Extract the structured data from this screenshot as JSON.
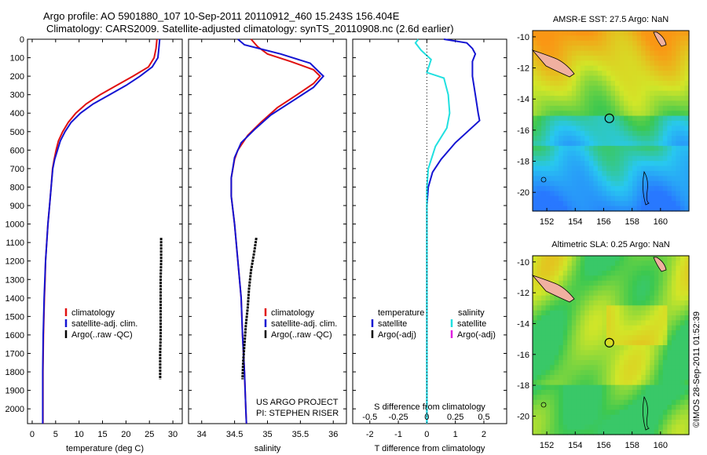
{
  "header": {
    "title_line1": "Argo profile: AO 5901880_107 10-Sep-2011 20110912_460 15.243S 156.404E",
    "title_line2": "Climatology: CARS2009. Satellite-adjusted climatology: synTS_20110908.nc (2.6d earlier)"
  },
  "stamp": "©IMOS 28-Sep-2011 01:52:39",
  "colors": {
    "climatology": "#e01010",
    "satellite": "#1414d2",
    "argo": "#000000",
    "cyan": "#20e0e0",
    "magenta": "#e020e0"
  },
  "depth_axis": {
    "ticks": [
      0,
      100,
      200,
      300,
      400,
      500,
      600,
      700,
      800,
      900,
      1000,
      1100,
      1200,
      1300,
      1400,
      1500,
      1600,
      1700,
      1800,
      1900,
      2000
    ],
    "ylim": [
      0,
      2080
    ]
  },
  "chart_data": [
    {
      "type": "line",
      "xlabel": "temperature (deg C)",
      "xlim": [
        -1,
        32
      ],
      "xticks": [
        0,
        5,
        10,
        15,
        20,
        25,
        30
      ],
      "legend": [
        "climatology",
        "satellite-adj. clim.",
        "Argo(..raw -QC)"
      ],
      "series": [
        {
          "name": "climatology",
          "points": [
            [
              26.6,
              0
            ],
            [
              26.4,
              50
            ],
            [
              26.0,
              100
            ],
            [
              24.8,
              150
            ],
            [
              21.5,
              200
            ],
            [
              18.0,
              250
            ],
            [
              14.5,
              300
            ],
            [
              11.5,
              350
            ],
            [
              9.3,
              400
            ],
            [
              7.7,
              450
            ],
            [
              6.5,
              500
            ],
            [
              5.6,
              550
            ],
            [
              5.1,
              600
            ],
            [
              4.7,
              650
            ],
            [
              4.35,
              700
            ],
            [
              4.05,
              800
            ],
            [
              3.7,
              900
            ],
            [
              3.35,
              1000
            ],
            [
              3.1,
              1100
            ],
            [
              2.85,
              1200
            ],
            [
              2.75,
              1300
            ],
            [
              2.6,
              1400
            ],
            [
              2.5,
              1500
            ],
            [
              2.4,
              1600
            ],
            [
              2.35,
              1700
            ],
            [
              2.3,
              1800
            ],
            [
              2.3,
              2000
            ],
            [
              2.3,
              2080
            ]
          ]
        },
        {
          "name": "satellite-adj. clim.",
          "points": [
            [
              27.2,
              0
            ],
            [
              27.0,
              50
            ],
            [
              26.8,
              100
            ],
            [
              25.6,
              150
            ],
            [
              23.0,
              200
            ],
            [
              20.0,
              250
            ],
            [
              16.5,
              300
            ],
            [
              13.0,
              350
            ],
            [
              10.3,
              400
            ],
            [
              8.3,
              450
            ],
            [
              7.0,
              500
            ],
            [
              6.0,
              550
            ],
            [
              5.4,
              600
            ],
            [
              4.8,
              650
            ],
            [
              4.4,
              700
            ],
            [
              4.05,
              800
            ],
            [
              3.7,
              900
            ],
            [
              3.35,
              1000
            ],
            [
              3.1,
              1100
            ],
            [
              2.85,
              1200
            ],
            [
              2.7,
              1300
            ],
            [
              2.55,
              1400
            ],
            [
              2.45,
              1500
            ],
            [
              2.35,
              1600
            ],
            [
              2.3,
              1700
            ],
            [
              2.25,
              1800
            ],
            [
              2.25,
              2000
            ],
            [
              2.25,
              2080
            ]
          ]
        },
        {
          "name": "Argo(..raw -QC)",
          "points": [
            [
              27.5,
              1075
            ],
            [
              27.5,
              1200
            ],
            [
              27.4,
              1300
            ],
            [
              27.4,
              1400
            ],
            [
              27.4,
              1500
            ],
            [
              27.4,
              1600
            ],
            [
              27.3,
              1700
            ],
            [
              27.3,
              1840
            ]
          ]
        }
      ]
    },
    {
      "type": "line",
      "xlabel": "salinity",
      "xlim": [
        33.8,
        36.2
      ],
      "xticks": [
        34,
        34.5,
        35,
        35.5,
        36
      ],
      "legend": [
        "climatology",
        "satellite-adj. clim.",
        "Argo(..raw -QC)"
      ],
      "annotation": [
        "US ARGO PROJECT",
        "PI: STEPHEN RISER"
      ],
      "series": [
        {
          "name": "climatology",
          "points": [
            [
              34.75,
              0
            ],
            [
              34.85,
              40
            ],
            [
              35.0,
              80
            ],
            [
              35.35,
              120
            ],
            [
              35.7,
              165
            ],
            [
              35.8,
              200
            ],
            [
              35.7,
              240
            ],
            [
              35.45,
              300
            ],
            [
              35.15,
              370
            ],
            [
              34.9,
              450
            ],
            [
              34.7,
              520
            ],
            [
              34.55,
              600
            ],
            [
              34.5,
              650
            ],
            [
              34.45,
              750
            ],
            [
              34.45,
              850
            ],
            [
              34.5,
              1000
            ],
            [
              34.55,
              1200
            ],
            [
              34.6,
              1400
            ],
            [
              34.62,
              1600
            ],
            [
              34.65,
              1800
            ],
            [
              34.67,
              2000
            ],
            [
              34.68,
              2080
            ]
          ]
        },
        {
          "name": "satellite-adj. clim.",
          "points": [
            [
              34.55,
              0
            ],
            [
              34.65,
              30
            ],
            [
              35.2,
              80
            ],
            [
              35.65,
              130
            ],
            [
              35.85,
              200
            ],
            [
              35.7,
              260
            ],
            [
              35.4,
              330
            ],
            [
              35.05,
              410
            ],
            [
              34.8,
              490
            ],
            [
              34.6,
              560
            ],
            [
              34.5,
              640
            ],
            [
              34.45,
              750
            ],
            [
              34.45,
              850
            ],
            [
              34.5,
              1000
            ],
            [
              34.55,
              1200
            ],
            [
              34.6,
              1400
            ],
            [
              34.62,
              1600
            ],
            [
              34.65,
              1800
            ],
            [
              34.67,
              2000
            ],
            [
              34.68,
              2080
            ]
          ]
        },
        {
          "name": "Argo(..raw -QC)",
          "points": [
            [
              34.83,
              1075
            ],
            [
              34.8,
              1150
            ],
            [
              34.75,
              1250
            ],
            [
              34.72,
              1350
            ],
            [
              34.7,
              1450
            ],
            [
              34.67,
              1550
            ],
            [
              34.65,
              1650
            ],
            [
              34.63,
              1750
            ],
            [
              34.62,
              1840
            ]
          ]
        }
      ]
    },
    {
      "type": "line",
      "xlabel": "T difference from climatology",
      "xlabel2": "S difference from climatology",
      "xlim": [
        -2.6,
        2.8
      ],
      "xticks": [
        -2,
        -1,
        0,
        1,
        2
      ],
      "xticks2": [
        "-0.5",
        "-0.25",
        "0",
        "0.25",
        "0.5"
      ],
      "legend_temperature": {
        "title": "temperature",
        "items": [
          "satellite",
          "Argo(-adj)"
        ]
      },
      "legend_salinity": {
        "title": "salinity",
        "items": [
          "satellite",
          "Argo(-adj)"
        ]
      },
      "series": [
        {
          "name": "temperature satellite",
          "points": [
            [
              0.6,
              0
            ],
            [
              1.4,
              20
            ],
            [
              1.6,
              50
            ],
            [
              1.7,
              80
            ],
            [
              1.6,
              120
            ],
            [
              1.6,
              200
            ],
            [
              1.7,
              300
            ],
            [
              1.8,
              400
            ],
            [
              1.85,
              440
            ],
            [
              1.0,
              560
            ],
            [
              0.5,
              650
            ],
            [
              0.2,
              720
            ],
            [
              0.05,
              800
            ],
            [
              0,
              900
            ],
            [
              0,
              2080
            ]
          ]
        },
        {
          "name": "salinity satellite",
          "points": [
            [
              -0.3,
              0
            ],
            [
              -0.4,
              20
            ],
            [
              -0.2,
              60
            ],
            [
              0.15,
              110
            ],
            [
              0.0,
              180
            ],
            [
              0.6,
              210
            ],
            [
              0.75,
              300
            ],
            [
              0.8,
              400
            ],
            [
              0.7,
              480
            ],
            [
              0.3,
              580
            ],
            [
              0.05,
              700
            ],
            [
              0,
              800
            ],
            [
              0,
              2080
            ]
          ]
        }
      ]
    },
    {
      "type": "heatmap",
      "title": "AMSR-E SST: 27.5 Argo: NaN",
      "xticks": [
        152,
        154,
        156,
        158,
        160
      ],
      "yticks": [
        -10,
        -12,
        -14,
        -16,
        -18,
        -20
      ],
      "xlim": [
        151,
        162
      ],
      "ylim": [
        -21.2,
        -9.6
      ],
      "marker": [
        156.4,
        -15.24
      ]
    },
    {
      "type": "heatmap",
      "title": "Altimetric SLA: 0.25 Argo: NaN",
      "xticks": [
        152,
        154,
        156,
        158,
        160
      ],
      "yticks": [
        -10,
        -12,
        -14,
        -16,
        -18,
        -20
      ],
      "xlim": [
        151,
        162
      ],
      "ylim": [
        -21.2,
        -9.6
      ],
      "marker": [
        156.4,
        -15.24
      ]
    }
  ]
}
